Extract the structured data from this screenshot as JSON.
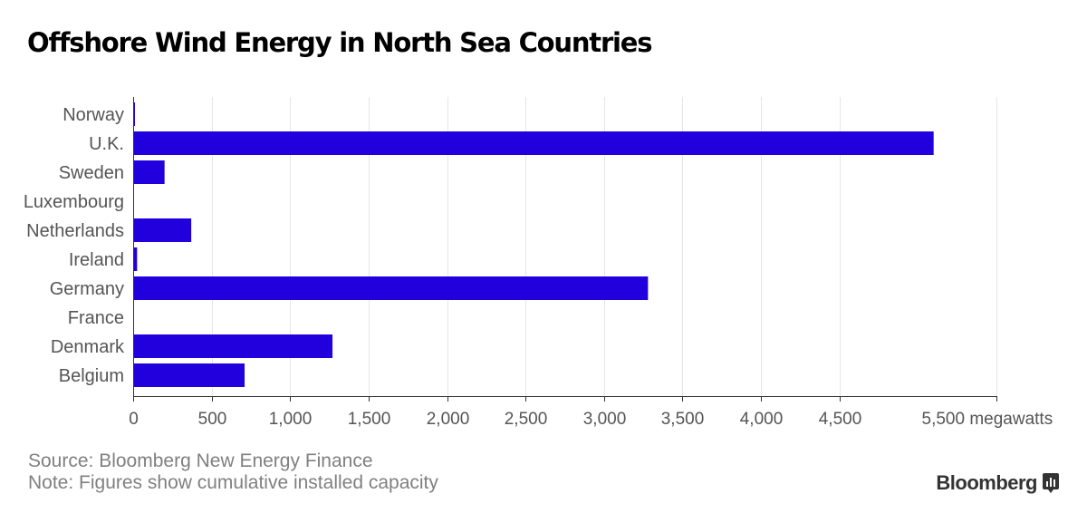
{
  "chart_data": {
    "type": "bar",
    "orientation": "horizontal",
    "title": "Offshore Wind Energy in North Sea Countries",
    "categories": [
      "Norway",
      "U.K.",
      "Sweden",
      "Luxembourg",
      "Netherlands",
      "Ireland",
      "Germany",
      "France",
      "Denmark",
      "Belgium"
    ],
    "values": [
      2,
      5100,
      200,
      0,
      370,
      25,
      3280,
      0,
      1270,
      710
    ],
    "xlim": [
      0,
      5500
    ],
    "xticks": [
      0,
      500,
      1000,
      1500,
      2000,
      2500,
      3000,
      3500,
      4000,
      4500,
      5500
    ],
    "xtick_labels": [
      "0",
      "500",
      "1,000",
      "1,500",
      "2,000",
      "2,500",
      "3,000",
      "3,500",
      "4,000",
      "4,500",
      "5,500 megawatts"
    ],
    "xlabel": "megawatts",
    "grid": true,
    "legend": "none",
    "bar_color": "#2200dd"
  },
  "footer": {
    "source": "Source: Bloomberg New Energy Finance",
    "note": "Note: Figures show cumulative installed capacity",
    "brand": "Bloomberg"
  },
  "brand_icon": "bloomberg-chart-icon"
}
